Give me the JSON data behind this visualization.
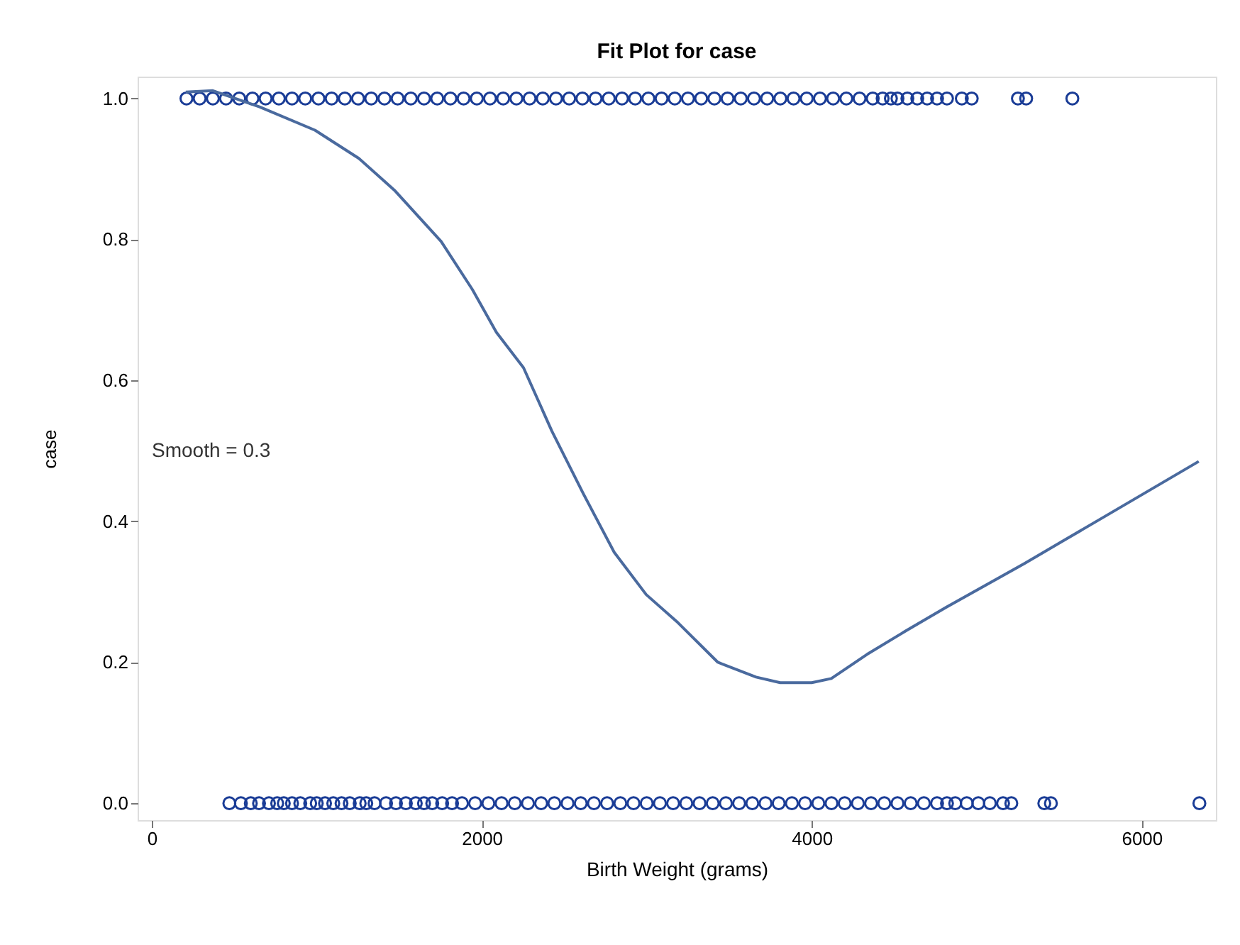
{
  "chart_data": {
    "type": "scatter",
    "title": "Fit Plot for case",
    "xlabel": "Birth Weight (grams)",
    "ylabel": "case",
    "annotations": [
      "Smooth = 0.3"
    ],
    "xlim": [
      -86,
      6450
    ],
    "ylim": [
      -0.024,
      1.031
    ],
    "xticks": [
      0,
      2000,
      4000,
      6000
    ],
    "yticks": [
      {
        "value": 0,
        "label": "0.0"
      },
      0.2,
      0.4,
      0.6,
      0.8,
      {
        "value": 1,
        "label": "1.0"
      }
    ],
    "grid": false,
    "marker": "circle",
    "series": [
      {
        "color": "#1a3c96",
        "x": [
          210,
          290,
          370,
          450,
          530,
          610,
          690,
          770,
          850,
          930,
          1010,
          1090,
          1170,
          1250,
          1330,
          1410,
          1490,
          1570,
          1650,
          1730,
          1810,
          1890,
          1970,
          2050,
          2130,
          2210,
          2290,
          2370,
          2450,
          2530,
          2610,
          2690,
          2770,
          2850,
          2930,
          3010,
          3090,
          3170,
          3250,
          3330,
          3410,
          3490,
          3570,
          3650,
          3730,
          3810,
          3890,
          3970,
          4050,
          4130,
          4210,
          4290,
          4370,
          4430,
          4480,
          4520,
          4580,
          4640,
          4700,
          4760,
          4820,
          4910,
          4970,
          5250,
          5300,
          5580
        ],
        "values": [
          1,
          1,
          1,
          1,
          1,
          1,
          1,
          1,
          1,
          1,
          1,
          1,
          1,
          1,
          1,
          1,
          1,
          1,
          1,
          1,
          1,
          1,
          1,
          1,
          1,
          1,
          1,
          1,
          1,
          1,
          1,
          1,
          1,
          1,
          1,
          1,
          1,
          1,
          1,
          1,
          1,
          1,
          1,
          1,
          1,
          1,
          1,
          1,
          1,
          1,
          1,
          1,
          1,
          1,
          1,
          1,
          1,
          1,
          1,
          1,
          1,
          1,
          1,
          1,
          1,
          1
        ]
      },
      {
        "color": "#1a3c96",
        "x": [
          470,
          540,
          600,
          650,
          710,
          760,
          800,
          850,
          900,
          960,
          1000,
          1050,
          1100,
          1150,
          1200,
          1260,
          1300,
          1350,
          1420,
          1480,
          1540,
          1600,
          1650,
          1700,
          1760,
          1820,
          1880,
          1960,
          2040,
          2120,
          2200,
          2280,
          2360,
          2440,
          2520,
          2600,
          2680,
          2760,
          2840,
          2920,
          3000,
          3080,
          3160,
          3240,
          3320,
          3400,
          3480,
          3560,
          3640,
          3720,
          3800,
          3880,
          3960,
          4040,
          4120,
          4200,
          4280,
          4360,
          4440,
          4520,
          4600,
          4680,
          4760,
          4820,
          4870,
          4940,
          5010,
          5080,
          5160,
          5210,
          5410,
          5450,
          6350
        ],
        "values": [
          0,
          0,
          0,
          0,
          0,
          0,
          0,
          0,
          0,
          0,
          0,
          0,
          0,
          0,
          0,
          0,
          0,
          0,
          0,
          0,
          0,
          0,
          0,
          0,
          0,
          0,
          0,
          0,
          0,
          0,
          0,
          0,
          0,
          0,
          0,
          0,
          0,
          0,
          0,
          0,
          0,
          0,
          0,
          0,
          0,
          0,
          0,
          0,
          0,
          0,
          0,
          0,
          0,
          0,
          0,
          0,
          0,
          0,
          0,
          0,
          0,
          0,
          0,
          0,
          0,
          0,
          0,
          0,
          0,
          0,
          0,
          0,
          0
        ]
      },
      {
        "type": "line",
        "color": "#4a6a9e",
        "line_style": "solid",
        "marker": "none",
        "x": [
          206,
          370,
          653,
          989,
          1255,
          1470,
          1754,
          1943,
          2089,
          2253,
          2425,
          2614,
          2803,
          2997,
          3190,
          3431,
          3663,
          3809,
          4000,
          4119,
          4334,
          4574,
          4815,
          5288,
          5770,
          6346
        ],
        "values": [
          1.009,
          1.011,
          0.988,
          0.955,
          0.915,
          0.87,
          0.797,
          0.729,
          0.668,
          0.618,
          0.528,
          0.44,
          0.356,
          0.296,
          0.256,
          0.2,
          0.179,
          0.171,
          0.171,
          0.177,
          0.211,
          0.245,
          0.278,
          0.34,
          0.406,
          0.485
        ]
      }
    ]
  }
}
